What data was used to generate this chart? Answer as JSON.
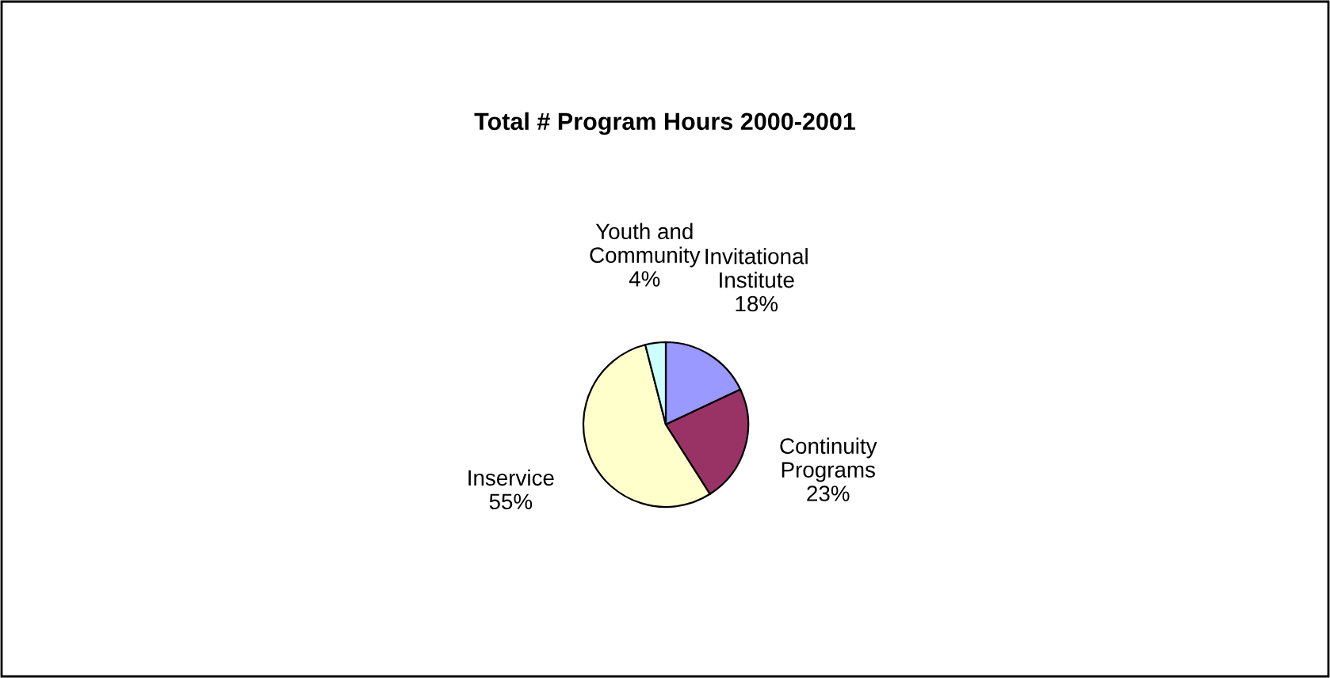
{
  "chart_data": {
    "type": "pie",
    "title": "Total # Program Hours 2000-2001",
    "categories": [
      "Invitational Institute",
      "Continuity Programs",
      "Inservice",
      "Youth and Community"
    ],
    "values": [
      18,
      23,
      55,
      4
    ],
    "value_labels": [
      "18%",
      "23%",
      "55%",
      "4%"
    ],
    "colors": [
      "#9999ff",
      "#993366",
      "#ffffcc",
      "#ccffff"
    ]
  }
}
